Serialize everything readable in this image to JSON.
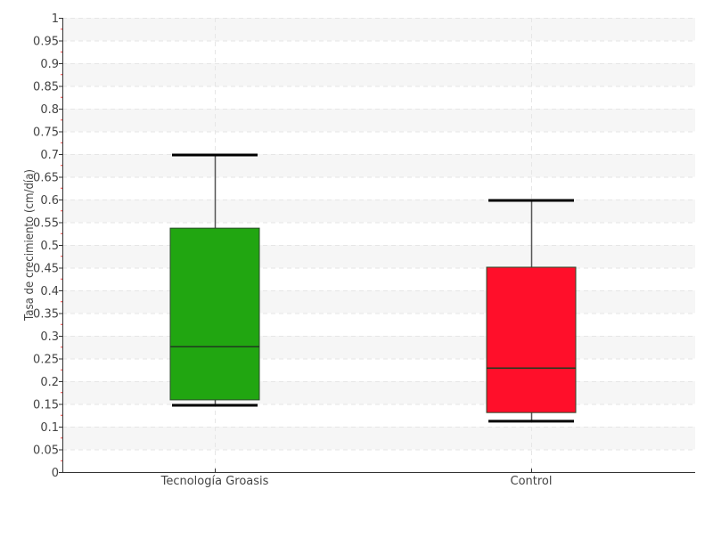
{
  "chart_data": {
    "type": "box",
    "title": "",
    "xlabel": "",
    "ylabel": "Tasa de crecimiento (cm/día)",
    "ylim": [
      0,
      1
    ],
    "yticks": [
      "0",
      "0.05",
      "0.1",
      "0.15",
      "0.2",
      "0.25",
      "0.3",
      "0.35",
      "0.4",
      "0.45",
      "0.5",
      "0.55",
      "0.6",
      "0.65",
      "0.7",
      "0.75",
      "0.8",
      "0.85",
      "0.9",
      "0.95",
      "1"
    ],
    "grid": true,
    "categories": [
      "Tecnología Groasis",
      "Control"
    ],
    "boxes": [
      {
        "category": "Tecnología Groasis",
        "min": 0.147,
        "q1": 0.159,
        "median": 0.276,
        "q3": 0.537,
        "max": 0.698,
        "color": "#21a611"
      },
      {
        "category": "Control",
        "min": 0.112,
        "q1": 0.131,
        "median": 0.229,
        "q3": 0.451,
        "max": 0.598,
        "color": "#ff0f2a"
      }
    ]
  }
}
